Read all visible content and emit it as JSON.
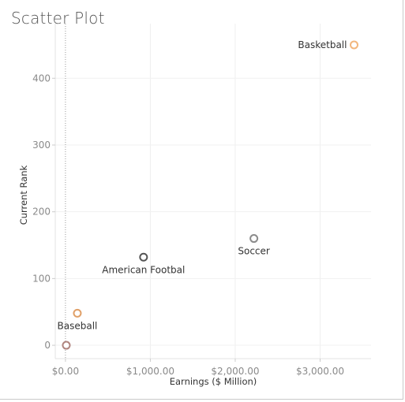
{
  "title": "Scatter Plot",
  "chart_data": {
    "type": "scatter",
    "title": "Scatter Plot",
    "xlabel": "Earnings ($ Million)",
    "ylabel": "Current Rank",
    "xlim": [
      -120,
      3600
    ],
    "ylim": [
      -20,
      470
    ],
    "x_ticks": [
      0,
      1000,
      2000,
      3000
    ],
    "x_tick_labels": [
      "$0.00",
      "$1,000.00",
      "$2,000.00",
      "$3,000.00"
    ],
    "y_ticks": [
      0,
      100,
      200,
      300,
      400
    ],
    "y_tick_labels": [
      "0",
      "100",
      "200",
      "300",
      "400"
    ],
    "grid": true,
    "zero_line_x": 0,
    "points": [
      {
        "label": "Basketball",
        "x": 3400,
        "y": 450,
        "color": "#f2b77e",
        "label_side": "left"
      },
      {
        "label": "Soccer",
        "x": 2220,
        "y": 160,
        "color": "#8c8c8c",
        "label_side": "below"
      },
      {
        "label": "American Footbal",
        "x": 920,
        "y": 132,
        "color": "#555555",
        "label_side": "below"
      },
      {
        "label": "Baseball",
        "x": 140,
        "y": 48,
        "color": "#e0a068",
        "label_side": "below"
      },
      {
        "label": "",
        "x": 10,
        "y": 0,
        "color": "#b0857f",
        "label_side": "none"
      }
    ]
  }
}
